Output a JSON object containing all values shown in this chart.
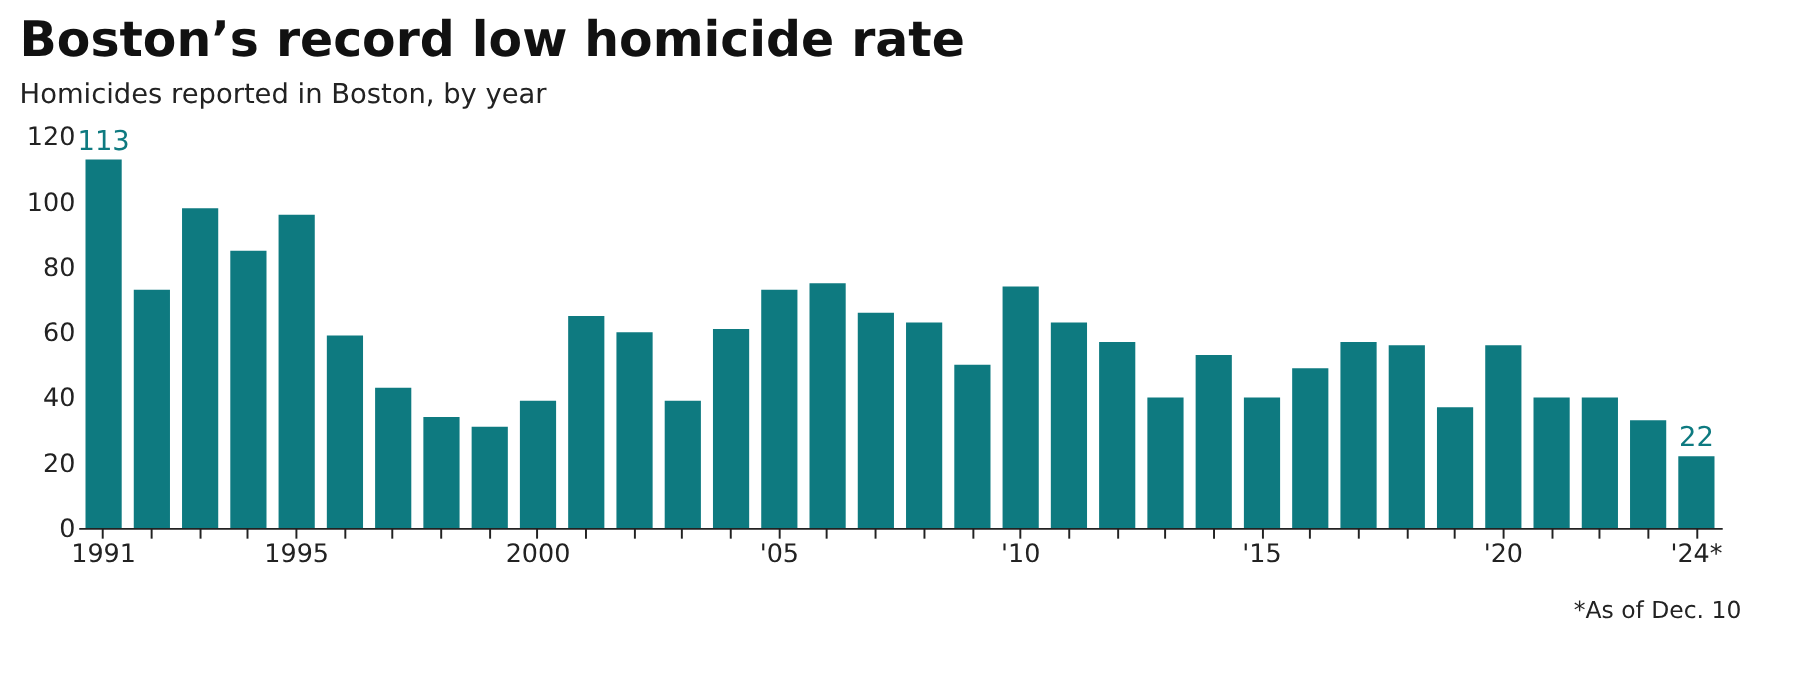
{
  "chart_data": {
    "type": "bar",
    "title": "Boston’s record low homicide rate",
    "subtitle": "Homicides reported in Boston, by year",
    "categories": [
      "1991",
      null,
      null,
      null,
      "1995",
      null,
      null,
      null,
      null,
      "2000",
      null,
      null,
      null,
      null,
      "'05",
      null,
      null,
      null,
      null,
      "'10",
      null,
      null,
      null,
      null,
      "'15",
      null,
      null,
      null,
      null,
      "'20",
      null,
      null,
      null,
      "'24*"
    ],
    "values": [
      113,
      73,
      98,
      85,
      96,
      59,
      43,
      34,
      31,
      39,
      65,
      60,
      39,
      61,
      73,
      75,
      66,
      63,
      50,
      74,
      63,
      57,
      40,
      53,
      40,
      49,
      57,
      56,
      37,
      56,
      40,
      40,
      33,
      22
    ],
    "value_labels": [
      "113",
      null,
      null,
      null,
      null,
      null,
      null,
      null,
      null,
      null,
      null,
      null,
      null,
      null,
      null,
      null,
      null,
      null,
      null,
      null,
      null,
      null,
      null,
      null,
      null,
      null,
      null,
      null,
      null,
      null,
      null,
      null,
      null,
      "22"
    ],
    "color": "#0e7a80",
    "ylim": [
      0,
      120
    ],
    "yticks": [
      0,
      20,
      40,
      60,
      80,
      100,
      120
    ],
    "annotations": [
      "*As of Dec. 10"
    ]
  }
}
